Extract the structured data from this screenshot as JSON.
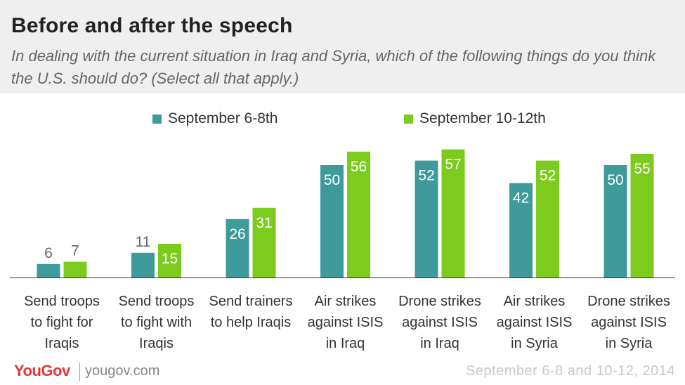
{
  "header": {
    "title": "Before and after the speech",
    "subtitle": "In dealing with the current situation in Iraq and Syria, which of the following things do you think the U.S. should do? (Select all that apply.)"
  },
  "colors": {
    "series_1": "#3f9b9b",
    "series_2": "#7dcb1e",
    "header_bg": "#efefef",
    "brand": "#e0373a"
  },
  "chart_data": {
    "type": "bar",
    "categories": [
      [
        "Send troops",
        "to fight for",
        "Iraqis"
      ],
      [
        "Send troops",
        "to fight with",
        "Iraqis"
      ],
      [
        "Send trainers",
        "to help Iraqis"
      ],
      [
        "Air strikes",
        "against ISIS",
        "in Iraq"
      ],
      [
        "Drone strikes",
        "against ISIS",
        "in Iraq"
      ],
      [
        "Air strikes",
        "against ISIS",
        "in Syria"
      ],
      [
        "Drone strikes",
        "against ISIS",
        "in Syria"
      ]
    ],
    "series": [
      {
        "name": "September 6-8th",
        "color": "#3f9b9b",
        "values": [
          6,
          11,
          26,
          50,
          52,
          42,
          50
        ]
      },
      {
        "name": "September 10-12th",
        "color": "#7dcb1e",
        "values": [
          7,
          15,
          31,
          56,
          57,
          52,
          55
        ]
      }
    ],
    "ylim": [
      0,
      60
    ],
    "legend_position": "top",
    "grid": false
  },
  "footer": {
    "logo": "YouGov",
    "site": "yougov.com",
    "date": "September 6-8 and 10-12, 2014"
  }
}
